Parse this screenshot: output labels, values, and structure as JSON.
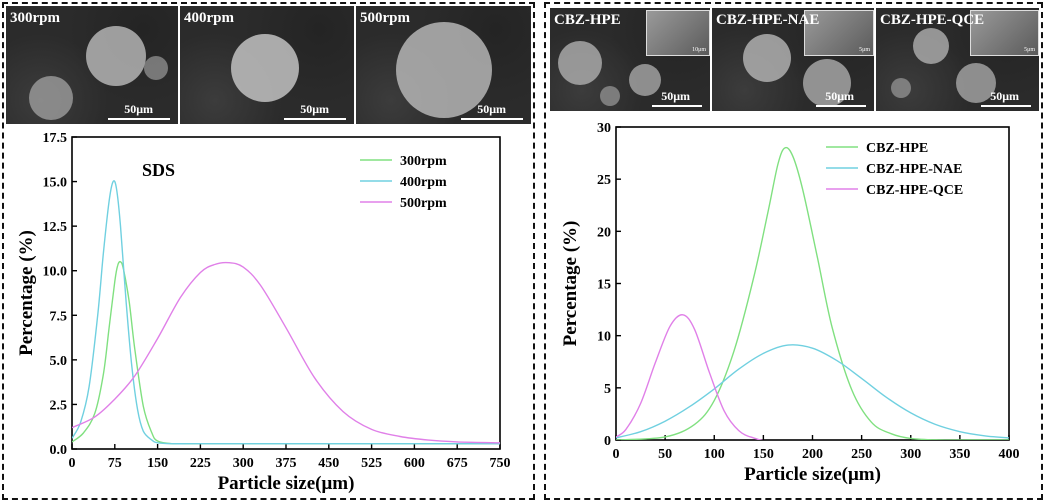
{
  "left": {
    "sem_images": [
      {
        "label": "300rpm",
        "scale": "50μm"
      },
      {
        "label": "400rpm",
        "scale": "50μm"
      },
      {
        "label": "500rpm",
        "scale": "50μm"
      }
    ]
  },
  "right": {
    "sem_images": [
      {
        "label": "CBZ-HPE",
        "scale": "50μm",
        "inset_scale": "10μm"
      },
      {
        "label": "CBZ-HPE-NAE",
        "scale": "50μm",
        "inset_scale": "5μm"
      },
      {
        "label": "CBZ-HPE-QCE",
        "scale": "50μm",
        "inset_scale": "5μm"
      }
    ]
  },
  "chart_data": [
    {
      "type": "line",
      "title": "",
      "annotation": "SDS",
      "xlabel": "Particle size(μm)",
      "ylabel": "Percentage (%)",
      "xlim": [
        0,
        750
      ],
      "ylim": [
        0,
        17.5
      ],
      "xticks": [
        "0",
        "75",
        "150",
        "225",
        "300",
        "375",
        "450",
        "525",
        "600",
        "675",
        "750"
      ],
      "yticks": [
        "0.0",
        "2.5",
        "5.0",
        "7.5",
        "10.0",
        "12.5",
        "15.0",
        "17.5"
      ],
      "legend_position": "top-right",
      "series": [
        {
          "name": "300rpm",
          "color": "#80e080",
          "x": [
            0,
            20,
            40,
            55,
            65,
            75,
            80,
            85,
            90,
            100,
            110,
            125,
            140,
            150,
            175,
            225,
            300,
            450,
            600,
            750
          ],
          "y": [
            0.4,
            0.9,
            2.0,
            4.2,
            6.8,
            9.4,
            10.3,
            10.5,
            10.1,
            8.3,
            5.6,
            2.4,
            0.9,
            0.45,
            0.3,
            0.3,
            0.3,
            0.3,
            0.3,
            0.3
          ]
        },
        {
          "name": "400rpm",
          "color": "#70d0e0",
          "x": [
            0,
            15,
            30,
            45,
            55,
            65,
            72,
            78,
            85,
            95,
            105,
            115,
            125,
            140,
            150,
            175,
            225,
            300,
            450,
            600,
            750
          ],
          "y": [
            0.6,
            1.5,
            3.5,
            7.5,
            11.0,
            13.9,
            15.0,
            14.6,
            12.5,
            8.2,
            4.6,
            2.2,
            1.0,
            0.5,
            0.35,
            0.3,
            0.3,
            0.3,
            0.3,
            0.3,
            0.3
          ]
        },
        {
          "name": "500rpm",
          "color": "#e080e8",
          "x": [
            0,
            40,
            75,
            110,
            150,
            190,
            225,
            250,
            275,
            300,
            330,
            375,
            425,
            475,
            525,
            575,
            625,
            675,
            750
          ],
          "y": [
            1.2,
            1.8,
            2.8,
            4.1,
            6.2,
            8.5,
            9.9,
            10.35,
            10.45,
            10.2,
            9.2,
            6.8,
            4.0,
            2.1,
            1.1,
            0.7,
            0.5,
            0.4,
            0.35
          ]
        }
      ]
    },
    {
      "type": "line",
      "title": "",
      "xlabel": "Particle size(μm)",
      "ylabel": "Percentage (%)",
      "xlim": [
        0,
        400
      ],
      "ylim": [
        0,
        30
      ],
      "xticks": [
        "0",
        "50",
        "100",
        "150",
        "200",
        "250",
        "300",
        "350",
        "400"
      ],
      "yticks": [
        "0",
        "5",
        "10",
        "15",
        "20",
        "25",
        "30"
      ],
      "legend_position": "top-right",
      "series": [
        {
          "name": "CBZ-HPE",
          "color": "#80e080",
          "x": [
            0,
            50,
            80,
            100,
            120,
            140,
            155,
            165,
            172,
            180,
            190,
            205,
            220,
            240,
            260,
            280,
            300,
            330,
            360,
            400
          ],
          "y": [
            0,
            0.3,
            1.5,
            3.8,
            8.5,
            15.5,
            22.0,
            26.5,
            28.0,
            27.2,
            24.0,
            17.5,
            10.8,
            4.8,
            1.7,
            0.6,
            0.15,
            0,
            0,
            0
          ]
        },
        {
          "name": "CBZ-HPE-NAE",
          "color": "#70d0e0",
          "x": [
            0,
            25,
            50,
            75,
            100,
            125,
            150,
            175,
            200,
            225,
            250,
            275,
            300,
            325,
            350,
            375,
            400
          ],
          "y": [
            0.2,
            0.8,
            1.8,
            3.2,
            4.9,
            6.8,
            8.3,
            9.1,
            8.8,
            7.6,
            5.9,
            4.1,
            2.6,
            1.5,
            0.8,
            0.4,
            0.2
          ]
        },
        {
          "name": "CBZ-HPE-QCE",
          "color": "#e080e8",
          "x": [
            0,
            10,
            25,
            40,
            55,
            68,
            80,
            95,
            110,
            125,
            140,
            160,
            200,
            250,
            300,
            400
          ],
          "y": [
            0.3,
            1.0,
            3.5,
            7.4,
            10.9,
            12.0,
            10.6,
            6.5,
            2.8,
            0.9,
            0.2,
            -0.2,
            -0.3,
            -0.3,
            -0.3,
            -0.3
          ]
        }
      ]
    }
  ]
}
